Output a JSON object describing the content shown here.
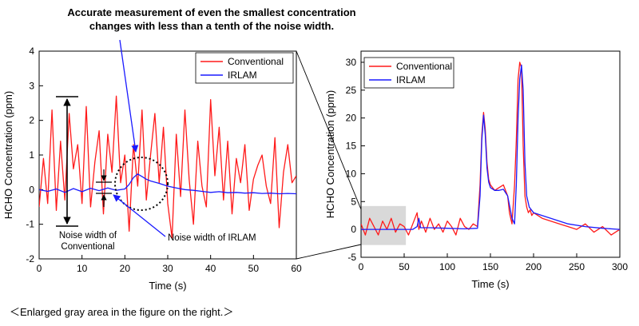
{
  "annotations": {
    "headline_line1": "Accurate measurement of even the smallest concentration",
    "headline_line2": "changes with less than a tenth of the noise width.",
    "noise_conventional_line1": "Noise width of",
    "noise_conventional_line2": "Conventional",
    "noise_irlam": "Noise width of IRLAM",
    "caption": "＜Enlarged gray area in the figure on the right.＞"
  },
  "colors": {
    "conventional": "#ff1a1a",
    "irlam": "#1a1aff",
    "arrow": "#1a1aff",
    "gray_region": "#d9d9d9"
  },
  "chart_data": [
    {
      "type": "line",
      "xlabel": "Time (s)",
      "ylabel": "HCHO Concentration (ppm)",
      "xlim": [
        0,
        60
      ],
      "ylim": [
        -2,
        4
      ],
      "xticks": [
        0,
        10,
        20,
        30,
        40,
        50,
        60
      ],
      "yticks": [
        -2,
        -1,
        0,
        1,
        2,
        3,
        4
      ],
      "legend_position": "top-right",
      "series": [
        {
          "name": "Conventional",
          "x": [
            0,
            1,
            2,
            3,
            4,
            5,
            6,
            7,
            8,
            9,
            10,
            11,
            12,
            13,
            14,
            15,
            16,
            17,
            18,
            19,
            20,
            21,
            22,
            23,
            24,
            25,
            26,
            27,
            28,
            29,
            30,
            31,
            32,
            33,
            34,
            35,
            36,
            37,
            38,
            39,
            40,
            41,
            42,
            43,
            44,
            45,
            46,
            47,
            48,
            49,
            50,
            51,
            52,
            53,
            54,
            55,
            56,
            57,
            58,
            59,
            60
          ],
          "values": [
            -0.5,
            0.9,
            -0.4,
            2.3,
            -0.6,
            1.4,
            -0.3,
            2.2,
            0.6,
            1.3,
            -0.4,
            2.4,
            -0.5,
            0.8,
            1.7,
            -0.7,
            1.6,
            0.5,
            2.7,
            0.2,
            1.0,
            -1.2,
            1.3,
            0.1,
            2.3,
            -0.3,
            1.0,
            2.2,
            0.2,
            1.8,
            -0.4,
            -1.4,
            1.6,
            -0.2,
            2.3,
            0.3,
            -1.0,
            1.4,
            0.1,
            -0.5,
            2.6,
            0.4,
            1.8,
            -0.3,
            1.4,
            -0.7,
            0.9,
            0.2,
            1.3,
            -0.6,
            0.3,
            0.7,
            1.0,
            0.1,
            -0.4,
            1.5,
            -1.1,
            0.5,
            1.3,
            0.2,
            0.4
          ]
        },
        {
          "name": "IRLAM",
          "x": [
            0,
            2,
            4,
            6,
            8,
            10,
            12,
            14,
            16,
            18,
            20,
            21,
            22,
            23,
            24,
            25,
            26,
            28,
            30,
            32,
            34,
            36,
            38,
            40,
            42,
            44,
            46,
            48,
            50,
            52,
            54,
            56,
            58,
            60
          ],
          "values": [
            0.0,
            -0.05,
            0.02,
            -0.08,
            0.03,
            -0.06,
            0.04,
            -0.03,
            0.05,
            -0.02,
            0.02,
            0.15,
            0.35,
            0.45,
            0.38,
            0.3,
            0.25,
            0.18,
            0.1,
            0.05,
            0.0,
            -0.02,
            -0.05,
            -0.08,
            -0.06,
            -0.09,
            -0.08,
            -0.1,
            -0.09,
            -0.11,
            -0.1,
            -0.12,
            -0.11,
            -0.12
          ]
        }
      ]
    },
    {
      "type": "line",
      "xlabel": "Time (s)",
      "ylabel": "HCHO Concentration (ppm)",
      "xlim": [
        0,
        300
      ],
      "ylim": [
        -5,
        32
      ],
      "xticks": [
        0,
        50,
        100,
        150,
        200,
        250,
        300
      ],
      "yticks": [
        -5,
        0,
        5,
        10,
        15,
        20,
        25,
        30
      ],
      "legend_position": "top-left",
      "series": [
        {
          "name": "Conventional",
          "x": [
            0,
            5,
            10,
            15,
            20,
            25,
            30,
            35,
            40,
            45,
            50,
            55,
            60,
            65,
            67,
            70,
            75,
            80,
            85,
            90,
            95,
            100,
            105,
            110,
            115,
            120,
            125,
            130,
            135,
            138,
            140,
            142,
            144,
            146,
            148,
            150,
            155,
            160,
            165,
            170,
            172,
            175,
            178,
            180,
            182,
            184,
            186,
            188,
            190,
            192,
            194,
            196,
            198,
            200,
            210,
            220,
            230,
            240,
            250,
            260,
            270,
            280,
            290,
            300
          ],
          "values": [
            1,
            -1,
            2,
            0.5,
            -1,
            1.5,
            0,
            2,
            -0.5,
            1,
            0.5,
            -1,
            1,
            3,
            0,
            1.5,
            -0.5,
            2,
            0,
            1,
            -0.5,
            1.5,
            0.5,
            -1,
            2,
            0.5,
            0,
            1,
            0.5,
            8,
            17,
            21,
            18,
            12,
            9,
            8,
            7,
            7.5,
            8,
            6,
            3,
            1,
            8,
            16,
            27,
            30,
            29,
            15,
            6,
            4,
            3,
            3.5,
            2.5,
            3,
            2,
            1.5,
            1,
            0.5,
            0,
            1,
            -0.5,
            0.5,
            -1,
            0
          ]
        },
        {
          "name": "IRLAM",
          "x": [
            0,
            20,
            40,
            60,
            65,
            67,
            69,
            80,
            100,
            120,
            135,
            138,
            140,
            142,
            144,
            146,
            148,
            150,
            155,
            160,
            165,
            170,
            175,
            178,
            180,
            182,
            184,
            186,
            188,
            190,
            192,
            195,
            200,
            220,
            240,
            260,
            280,
            300
          ],
          "values": [
            0,
            0,
            0,
            0,
            0.5,
            2,
            0.3,
            0.3,
            0.2,
            0.1,
            0.2,
            6,
            16,
            20.5,
            17,
            11,
            8.5,
            7.5,
            7,
            7,
            7.2,
            6,
            2,
            1,
            8,
            20,
            27,
            29.5,
            25,
            12,
            6,
            4,
            3,
            2,
            1,
            0.5,
            0.2,
            0
          ]
        }
      ]
    }
  ]
}
